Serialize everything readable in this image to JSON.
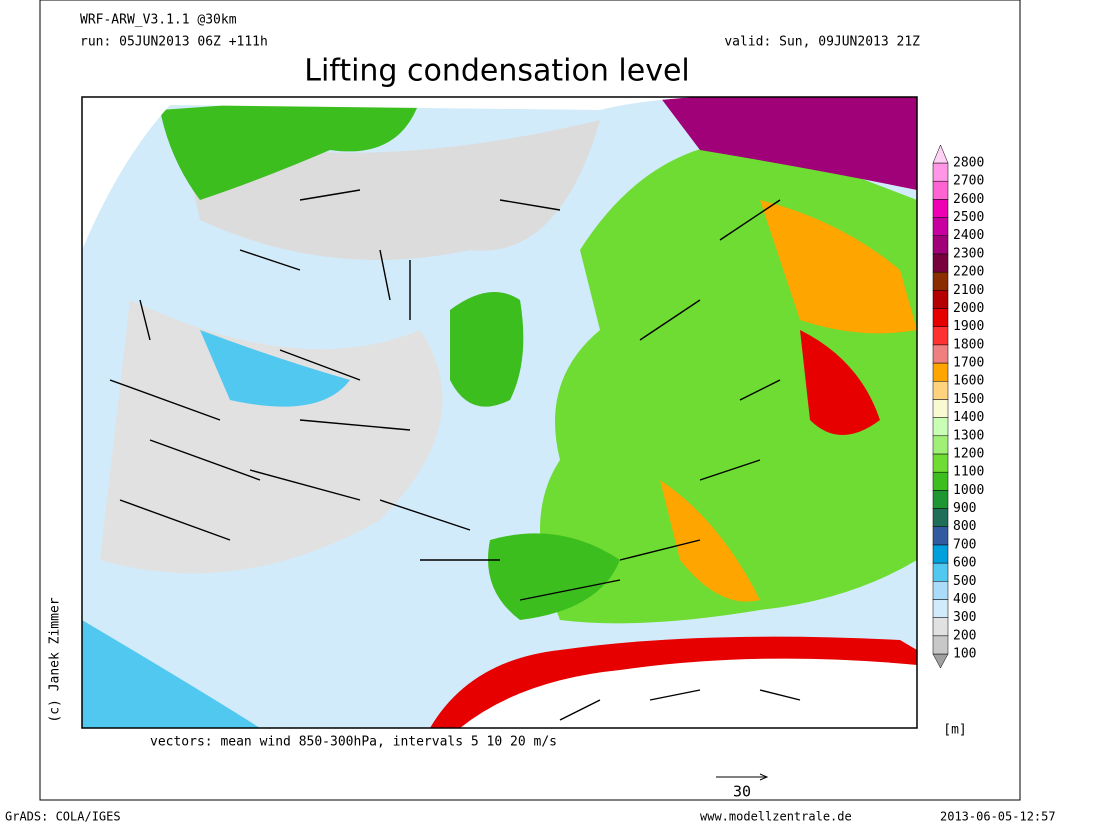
{
  "header": {
    "model": "WRF-ARW_V3.1.1 @30km",
    "run": "run: 05JUN2013 06Z +111h",
    "valid": "valid: Sun, 09JUN2013 21Z",
    "title": "Lifting condensation level"
  },
  "map": {
    "copyright": "(c) Janek Zimmer",
    "vectors_note": "vectors: mean wind 850-300hPa, intervals 5 10 20 m/s",
    "scale_arrow_label": "30"
  },
  "legend": {
    "unit": "[m]",
    "ticks": [
      100,
      200,
      300,
      400,
      500,
      600,
      700,
      800,
      900,
      1000,
      1100,
      1200,
      1300,
      1400,
      1500,
      1600,
      1700,
      1800,
      1900,
      2000,
      2100,
      2200,
      2300,
      2400,
      2500,
      2600,
      2700,
      2800
    ],
    "colors": [
      "#a0a0a0",
      "#c8c8c8",
      "#e1e1e1",
      "#d2ebfa",
      "#aadcfa",
      "#50c8f0",
      "#00a0dc",
      "#325aa0",
      "#1e6e5a",
      "#1e9632",
      "#3cbe1e",
      "#6edc32",
      "#a0f078",
      "#c8ffb4",
      "#fafad2",
      "#ffd27d",
      "#ffa500",
      "#f08080",
      "#ff3232",
      "#e60000",
      "#b40000",
      "#8c2d00",
      "#78003c",
      "#a00078",
      "#c800a0",
      "#f000b4",
      "#ff64d2",
      "#ff96e6",
      "#ffd2f5"
    ]
  },
  "footer": {
    "left": "GrADS: COLA/IGES",
    "center": "www.modellzentrale.de",
    "right": "2013-06-05-12:57"
  }
}
